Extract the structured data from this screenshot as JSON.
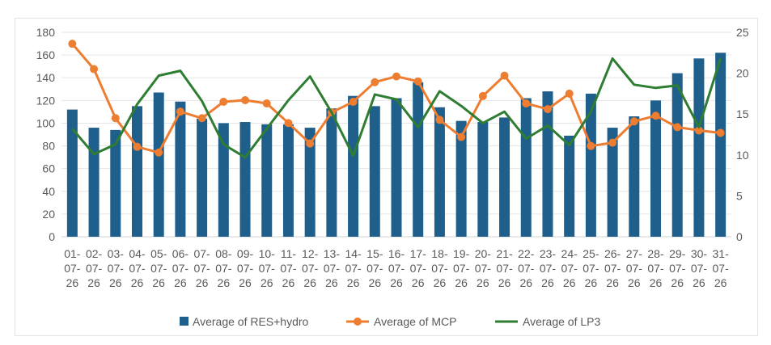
{
  "chart_data": {
    "type": "bar",
    "categories": [
      "01-07-26",
      "02-07-26",
      "03-07-26",
      "04-07-26",
      "05-07-26",
      "06-07-26",
      "07-07-26",
      "08-07-26",
      "09-07-26",
      "10-07-26",
      "11-07-26",
      "12-07-26",
      "13-07-26",
      "14-07-26",
      "15-07-26",
      "16-07-26",
      "17-07-26",
      "18-07-26",
      "19-07-26",
      "20-07-26",
      "21-07-26",
      "22-07-26",
      "23-07-26",
      "24-07-26",
      "25-07-26",
      "26-07-26",
      "27-07-26",
      "28-07-26",
      "29-07-26",
      "30-07-26",
      "31-07-26"
    ],
    "category_lines": [
      [
        "01-",
        "07-",
        "26"
      ],
      [
        "02-",
        "07-",
        "26"
      ],
      [
        "03-",
        "07-",
        "26"
      ],
      [
        "04-",
        "07-",
        "26"
      ],
      [
        "05-",
        "07-",
        "26"
      ],
      [
        "06-",
        "07-",
        "26"
      ],
      [
        "07-",
        "07-",
        "26"
      ],
      [
        "08-",
        "07-",
        "26"
      ],
      [
        "09-",
        "07-",
        "26"
      ],
      [
        "10-",
        "07-",
        "26"
      ],
      [
        "11-",
        "07-",
        "26"
      ],
      [
        "12-",
        "07-",
        "26"
      ],
      [
        "13-",
        "07-",
        "26"
      ],
      [
        "14-",
        "07-",
        "26"
      ],
      [
        "15-",
        "07-",
        "26"
      ],
      [
        "16-",
        "07-",
        "26"
      ],
      [
        "17-",
        "07-",
        "26"
      ],
      [
        "18-",
        "07-",
        "26"
      ],
      [
        "19-",
        "07-",
        "26"
      ],
      [
        "20-",
        "07-",
        "26"
      ],
      [
        "21-",
        "07-",
        "26"
      ],
      [
        "22-",
        "07-",
        "26"
      ],
      [
        "23-",
        "07-",
        "26"
      ],
      [
        "24-",
        "07-",
        "26"
      ],
      [
        "25-",
        "07-",
        "26"
      ],
      [
        "26-",
        "07-",
        "26"
      ],
      [
        "27-",
        "07-",
        "26"
      ],
      [
        "28-",
        "07-",
        "26"
      ],
      [
        "29-",
        "07-",
        "26"
      ],
      [
        "30-",
        "07-",
        "26"
      ],
      [
        "31-",
        "07-",
        "26"
      ]
    ],
    "series": [
      {
        "name": "Average of RES+hydro",
        "type": "bar",
        "axis": "left",
        "color": "#1f5f8b",
        "values": [
          112,
          96,
          94,
          115,
          127,
          119,
          104,
          100,
          101,
          99,
          99,
          96,
          113,
          124,
          115,
          122,
          136,
          114,
          102,
          101,
          105,
          122,
          128,
          89,
          126,
          96,
          106,
          120,
          144,
          157,
          162
        ]
      },
      {
        "name": "Average of MCP",
        "type": "line",
        "axis": "right",
        "color": "#ed7d31",
        "marker": "circle",
        "values": [
          23.6,
          20.5,
          14.5,
          11.0,
          10.3,
          15.3,
          14.5,
          16.5,
          16.7,
          16.3,
          13.9,
          11.4,
          15.2,
          16.5,
          18.9,
          19.6,
          19.0,
          14.3,
          12.2,
          17.2,
          19.7,
          16.3,
          15.6,
          17.5,
          11.1,
          11.5,
          14.1,
          14.8,
          13.4,
          13.0,
          12.7
        ]
      },
      {
        "name": "Average of LP3",
        "type": "line",
        "axis": "right",
        "color": "#2e7d32",
        "marker": "none",
        "values": [
          13.2,
          10.1,
          11.3,
          16.2,
          19.7,
          20.3,
          16.6,
          11.3,
          9.7,
          13.2,
          16.7,
          19.6,
          15.2,
          9.9,
          17.4,
          16.8,
          13.4,
          17.8,
          16.0,
          13.9,
          15.3,
          12.0,
          13.6,
          11.2,
          15.3,
          21.8,
          18.6,
          18.2,
          18.5,
          13.4,
          21.8
        ]
      }
    ],
    "y_left": {
      "min": 0,
      "max": 180,
      "ticks": [
        0,
        20,
        40,
        60,
        80,
        100,
        120,
        140,
        160,
        180
      ]
    },
    "y_right": {
      "min": 0,
      "max": 25,
      "ticks": [
        0,
        5,
        10,
        15,
        20,
        25
      ]
    },
    "grid": true,
    "legend": "bottom",
    "title": "",
    "xlabel": "",
    "ylabel": ""
  }
}
